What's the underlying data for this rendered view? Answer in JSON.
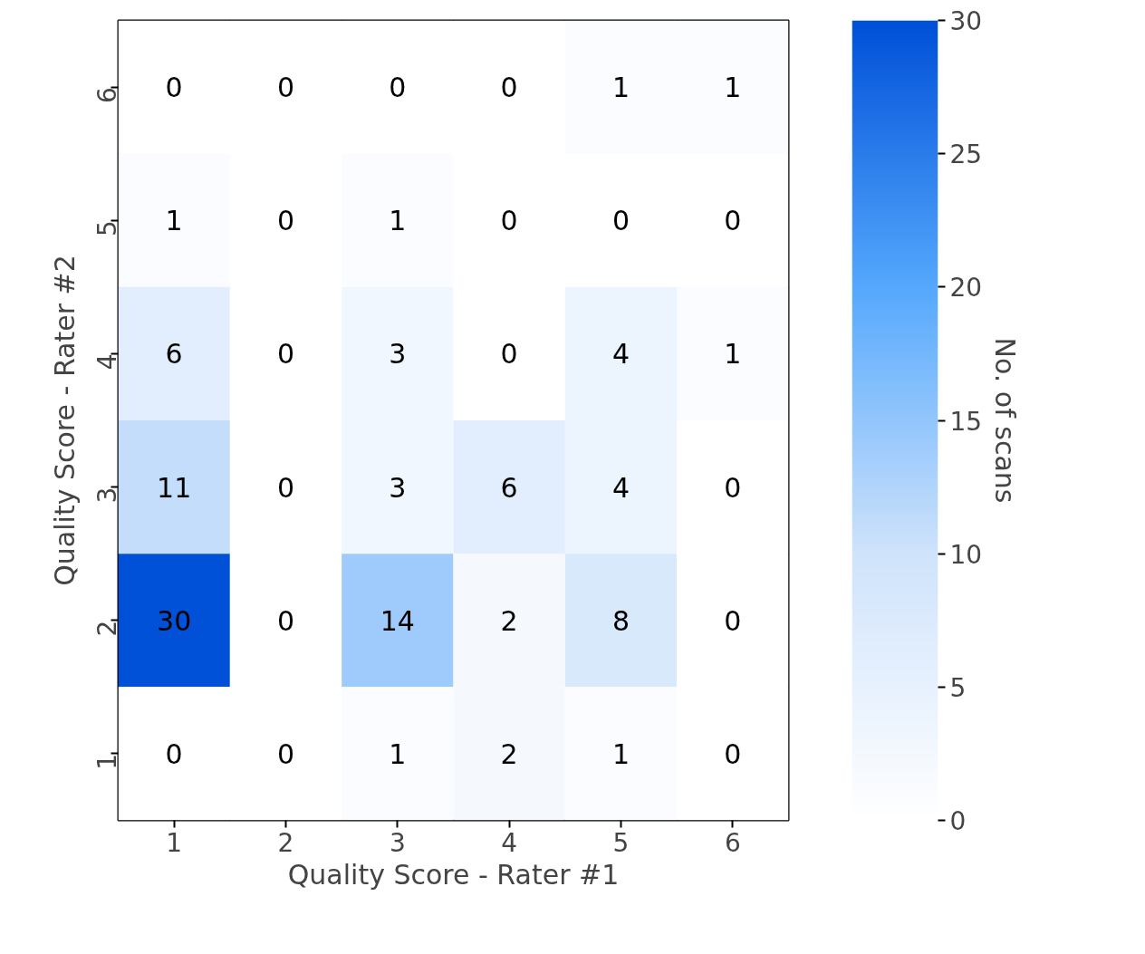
{
  "chart_data": {
    "type": "heatmap",
    "xlabel": "Quality Score - Rater #1",
    "ylabel": "Quality Score - Rater #2",
    "clabel": "No. of scans",
    "categories": [
      "1",
      "2",
      "3",
      "4",
      "5",
      "6"
    ],
    "y_categories": [
      "6",
      "5",
      "4",
      "3",
      "2",
      "1"
    ],
    "cells": [
      [
        0,
        0,
        0,
        0,
        1,
        1
      ],
      [
        1,
        0,
        1,
        0,
        0,
        0
      ],
      [
        6,
        0,
        3,
        0,
        4,
        1
      ],
      [
        11,
        0,
        3,
        6,
        4,
        0
      ],
      [
        30,
        0,
        14,
        2,
        8,
        0
      ],
      [
        0,
        0,
        1,
        2,
        1,
        0
      ]
    ],
    "clim": [
      0,
      30
    ],
    "cticks": [
      0,
      5,
      10,
      15,
      20,
      25,
      30
    ],
    "data_labels": true
  }
}
